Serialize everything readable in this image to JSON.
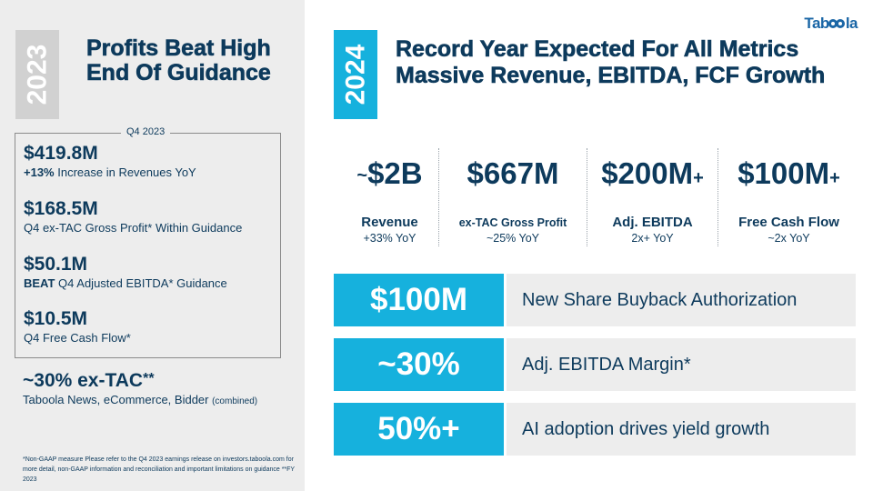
{
  "brand": {
    "logo_text_a": "Tab",
    "logo_text_b": "la",
    "accent": "#16b1dd",
    "navy": "#0d3a5c"
  },
  "left": {
    "year": "2023",
    "heading": "Profits Beat High End Of Guidance",
    "box_label": "Q4 2023",
    "metrics": [
      {
        "value": "$419.8M",
        "bold": "+13%",
        "desc": " Increase in Revenues YoY"
      },
      {
        "value": "$168.5M",
        "bold": "",
        "desc": "Q4 ex-TAC Gross Profit* Within Guidance"
      },
      {
        "value": "$50.1M",
        "bold": "BEAT",
        "desc": " Q4 Adjusted EBITDA* Guidance"
      },
      {
        "value": "$10.5M",
        "bold": "",
        "desc": "Q4 Free Cash Flow*"
      }
    ],
    "extac": {
      "value": "~30% ex-TAC",
      "mark": "**",
      "desc": "Taboola News, eCommerce, Bidder ",
      "desc_small": "(combined)"
    },
    "footnote": "*Non-GAAP measure Please refer to the Q4 2023 earnings release on investors.taboola.com for more detail, non-GAAP information and reconciliation and important limitations on guidance   **FY 2023"
  },
  "right": {
    "year": "2024",
    "heading": "Record Year Expected For All Metrics Massive Revenue, EBITDA, FCF Growth",
    "kpis": [
      {
        "prefix": "~",
        "value": "$2B",
        "suffix": "",
        "label": "Revenue",
        "sub": "+33% YoY"
      },
      {
        "prefix": "",
        "value": "$667M",
        "suffix": "",
        "label": "ex-TAC Gross Profit",
        "sub": "~25% YoY"
      },
      {
        "prefix": "",
        "value": "$200M",
        "suffix": "+",
        "label": "Adj. EBITDA",
        "sub": "2x+ YoY"
      },
      {
        "prefix": "",
        "value": "$100M",
        "suffix": "+",
        "label": "Free Cash Flow",
        "sub": "~2x YoY"
      }
    ],
    "bands": [
      {
        "value": "$100M",
        "text": "New Share Buyback Authorization"
      },
      {
        "value": "~30%",
        "text": "Adj. EBITDA Margin*"
      },
      {
        "value": "50%+",
        "text": "AI adoption drives yield growth"
      }
    ]
  }
}
